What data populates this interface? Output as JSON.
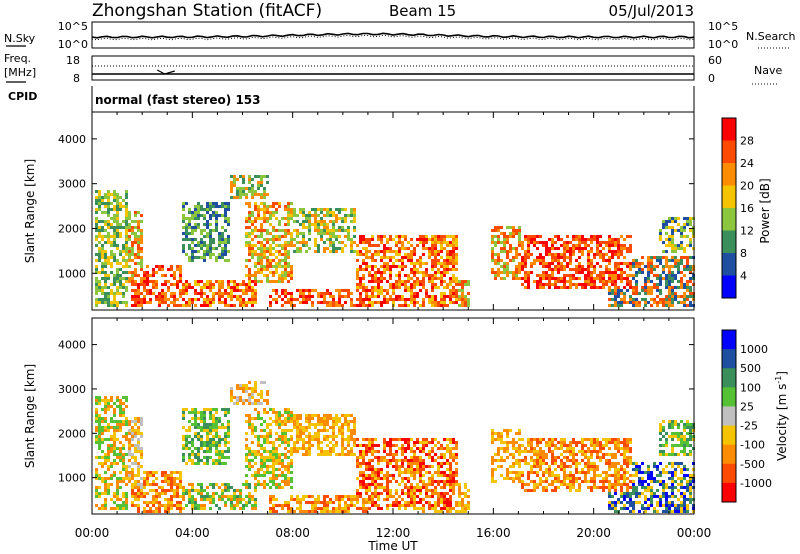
{
  "header": {
    "title": "Zhongshan Station (fitACF)",
    "beam": "Beam 15",
    "date": "05/Jul/2013"
  },
  "noise_panel": {
    "left_label": "N.Sky",
    "right_label": "N.Search",
    "left_ticks": [
      "10^5",
      "10^0"
    ],
    "right_ticks": [
      "10^5",
      "10^0"
    ]
  },
  "freq_panel": {
    "left_label_1": "Freq.",
    "left_label_2": "[MHz]",
    "right_label": "Nave",
    "left_ticks": [
      "18",
      "8"
    ],
    "right_ticks": [
      "60",
      "0"
    ]
  },
  "cpid": {
    "label": "CPID",
    "value": "normal (fast stereo) 153"
  },
  "chart_data": [
    {
      "type": "heatmap",
      "name": "power",
      "ylabel": "Slant Range [km]",
      "y_ticks": [
        "4000",
        "3000",
        "2000",
        "1000"
      ],
      "ylim": [
        180,
        4600
      ],
      "colorbar": {
        "label": "Power [dB]",
        "ticks": [
          "28",
          "24",
          "20",
          "16",
          "12",
          "8",
          "4"
        ],
        "colors": [
          "#ff0000",
          "#ff4b00",
          "#ff8c00",
          "#f5c400",
          "#8cc63f",
          "#3a8f5a",
          "#1e4fa0",
          "#0000ff"
        ]
      }
    },
    {
      "type": "heatmap",
      "name": "velocity",
      "ylabel": "Slant Range [km]",
      "y_ticks": [
        "4000",
        "3000",
        "2000",
        "1000"
      ],
      "ylim": [
        180,
        4600
      ],
      "colorbar": {
        "label": "Velocity [m s",
        "label_sup": "-1",
        "label_end": "]",
        "ticks": [
          "1000",
          "500",
          "100",
          "25",
          "-25",
          "-100",
          "-500",
          "-1000"
        ],
        "colors": [
          "#0000ff",
          "#1e4fa0",
          "#3a8f5a",
          "#55c236",
          "#c0c0c0",
          "#f5c400",
          "#ff8c00",
          "#ff4b00",
          "#ff0000"
        ]
      }
    }
  ],
  "xaxis": {
    "label": "Time UT",
    "ticks": [
      "00:00",
      "04:00",
      "08:00",
      "12:00",
      "16:00",
      "20:00",
      "00:00"
    ],
    "range_hours": [
      0,
      24
    ]
  }
}
